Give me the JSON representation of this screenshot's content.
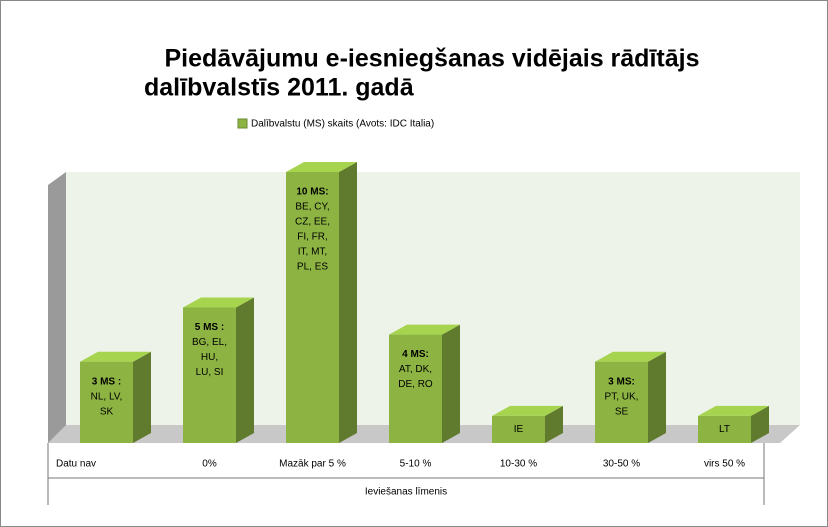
{
  "chart_data": {
    "type": "bar3d",
    "title_lines": [
      "Piedāvājumu e-iesniegšanas vidējais rādītājs",
      "dalībvalstīs 2011. gadā"
    ],
    "x_label": "Ieviešanas līmenis",
    "categories": [
      "Datu nav",
      "0%",
      "Mazāk par 5 %",
      "5-10 %",
      "10-30 %",
      "30-50 %",
      "virs 50 %"
    ],
    "series": [
      {
        "name": "Dalībvalstu (MS) skaits (Avots: IDC Italia)",
        "color": "#8db443",
        "values": [
          3,
          5,
          10,
          4,
          1,
          3,
          1
        ],
        "value_labels": [
          "3 MS  :",
          "5 MS  :",
          "10 MS:",
          "4 MS:",
          null,
          "3 MS:",
          null
        ],
        "member_lines": [
          [
            "NL, LV,",
            "SK"
          ],
          [
            "BG, EL,",
            "HU,",
            "LU, SI"
          ],
          [
            "BE, CY,",
            "CZ, EE,",
            "FI, FR,",
            "IT, MT,",
            "PL, ES"
          ],
          [
            "AT, DK,",
            "DE, RO"
          ],
          [
            "IE"
          ],
          [
            "PT, UK,",
            "SE"
          ],
          [
            "LT"
          ]
        ]
      }
    ],
    "ylim": [
      0,
      10
    ]
  }
}
